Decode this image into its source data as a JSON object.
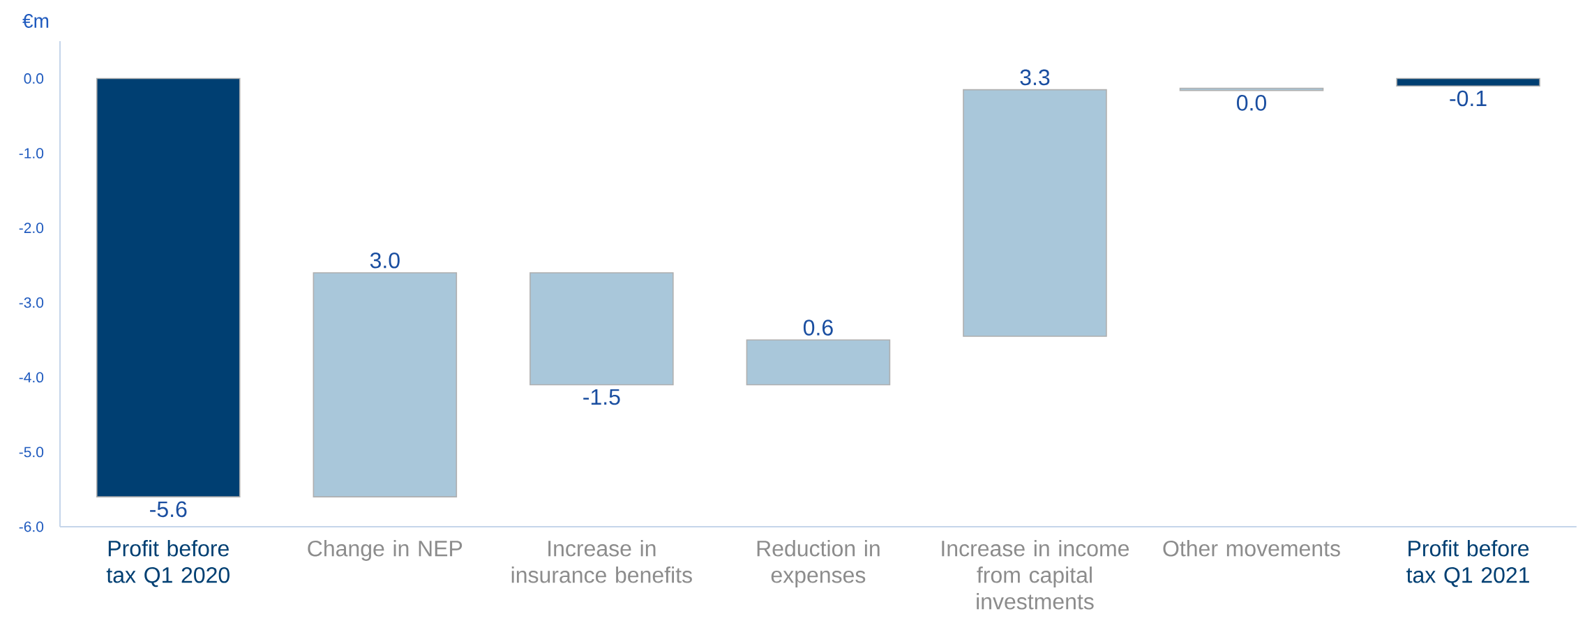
{
  "chart_data": {
    "type": "bar",
    "ylabel": "€m",
    "categories": [
      "Profit before tax Q1 2020",
      "Change in NEP",
      "Increase in insurance benefits",
      "Reduction in expenses",
      "Increase in income from capital investments",
      "Other movements",
      "Profit before tax Q1 2021"
    ],
    "values": [
      -5.6,
      3.0,
      -1.5,
      0.6,
      3.3,
      0.03,
      -0.1
    ],
    "value_labels": [
      "-5.6",
      "3.0",
      "-1.5",
      "0.6",
      "3.3",
      "0.0",
      "-0.1"
    ],
    "base": [
      0,
      -5.6,
      -2.6,
      -4.1,
      -3.45,
      -0.16,
      0
    ],
    "colors": [
      "#003f72",
      "#a9c7da",
      "#a9c7da",
      "#a9c7da",
      "#a9c7da",
      "#a9c7da",
      "#003f72"
    ],
    "ylim": [
      -6,
      0.5
    ],
    "yticks": [
      {
        "value": 0,
        "label": "0.0"
      },
      {
        "value": -1,
        "label": "-1.0"
      },
      {
        "value": -2,
        "label": "-2.0"
      },
      {
        "value": -3,
        "label": "-3.0"
      },
      {
        "value": -4,
        "label": "-4.0"
      },
      {
        "value": -5,
        "label": "-5.0"
      },
      {
        "value": -6,
        "label": "-6.0"
      }
    ]
  }
}
